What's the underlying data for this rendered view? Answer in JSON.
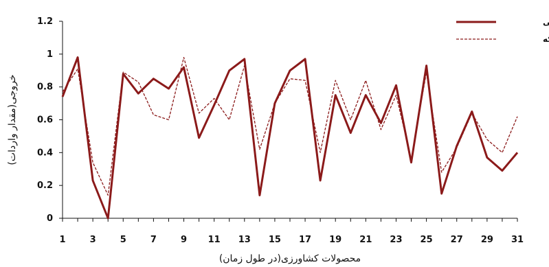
{
  "chart_data": {
    "type": "line",
    "title": "",
    "xlabel": "محصولات کشاورزی(در طول زمان)",
    "ylabel": "خروجی(مقدار واردات)",
    "x": [
      1,
      2,
      3,
      4,
      5,
      6,
      7,
      8,
      9,
      10,
      11,
      12,
      13,
      14,
      15,
      16,
      17,
      18,
      19,
      20,
      21,
      22,
      23,
      24,
      25,
      26,
      27,
      28,
      29,
      30,
      31
    ],
    "x_ticks": [
      1,
      3,
      5,
      7,
      9,
      11,
      13,
      15,
      17,
      19,
      21,
      23,
      25,
      27,
      29,
      31
    ],
    "y_ticks": [
      0,
      0.2,
      0.4,
      0.6,
      0.8,
      1,
      1.2
    ],
    "y_tick_labels": [
      "0",
      "0.2",
      "0.4",
      "0.6",
      "0.8",
      "1",
      "1.2"
    ],
    "xlim": [
      1,
      31
    ],
    "ylim": [
      0,
      1.2
    ],
    "grid": false,
    "legend_position": "top-right",
    "series": [
      {
        "name": "خروجی واقعی",
        "style": "solid",
        "color": "#8B1A1A",
        "values": [
          0.74,
          0.98,
          0.23,
          0.0,
          0.88,
          0.76,
          0.85,
          0.79,
          0.92,
          0.49,
          0.69,
          0.9,
          0.97,
          0.14,
          0.7,
          0.9,
          0.97,
          0.23,
          0.75,
          0.52,
          0.75,
          0.58,
          0.81,
          0.34,
          0.93,
          0.15,
          0.44,
          0.65,
          0.37,
          0.29,
          0.4
        ]
      },
      {
        "name": "خروجی شبکه",
        "style": "dashed",
        "color": "#8B1A1A",
        "values": [
          0.77,
          0.91,
          0.34,
          0.14,
          0.89,
          0.83,
          0.63,
          0.6,
          0.98,
          0.64,
          0.73,
          0.6,
          0.93,
          0.42,
          0.7,
          0.85,
          0.84,
          0.4,
          0.84,
          0.6,
          0.84,
          0.54,
          0.75,
          0.36,
          0.89,
          0.28,
          0.43,
          0.64,
          0.48,
          0.4,
          0.62
        ]
      }
    ]
  }
}
